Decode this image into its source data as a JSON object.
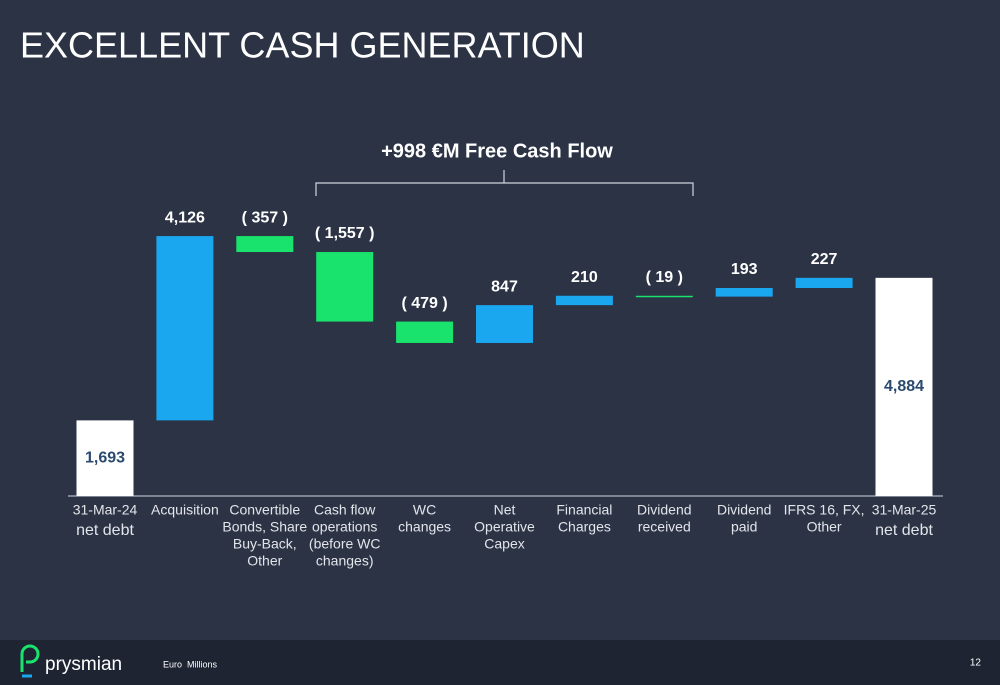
{
  "title": "EXCELLENT CASH GENERATION",
  "chart_data": {
    "type": "waterfall",
    "annotation": "+998 €M Free Cash Flow",
    "categories": [
      [
        "31-Mar-24",
        "net debt"
      ],
      [
        "Acquisition"
      ],
      [
        "Convertible",
        "Bonds, Share",
        "Buy-Back,",
        "Other"
      ],
      [
        "Cash flow",
        "operations",
        "(before WC",
        "changes)"
      ],
      [
        "WC",
        "changes"
      ],
      [
        "Net",
        "Operative",
        "Capex"
      ],
      [
        "Financial",
        "Charges"
      ],
      [
        "Dividend",
        "received"
      ],
      [
        "Dividend",
        "paid"
      ],
      [
        "IFRS 16, FX,",
        "Other"
      ],
      [
        "31-Mar-25",
        "net debt"
      ]
    ],
    "measure": [
      "absolute",
      "relative",
      "relative",
      "relative",
      "relative",
      "relative",
      "relative",
      "relative",
      "relative",
      "relative",
      "total"
    ],
    "values": [
      1693,
      4126,
      -357,
      -1557,
      -479,
      847,
      210,
      -19,
      193,
      227,
      4884
    ],
    "value_labels": [
      "1,693",
      "4,126",
      "( 357 )",
      "( 1,557 )",
      "( 479 )",
      "847",
      "210",
      "( 19 )",
      "193",
      "227",
      "4,884"
    ],
    "colors": {
      "total": "#ffffff",
      "increase": "#1aa7f0",
      "decrease": "#19e36c"
    },
    "ylim": [
      0,
      6000
    ]
  },
  "footer": {
    "logo": "prysmian",
    "note": "Euro  Millions",
    "page": "12"
  }
}
